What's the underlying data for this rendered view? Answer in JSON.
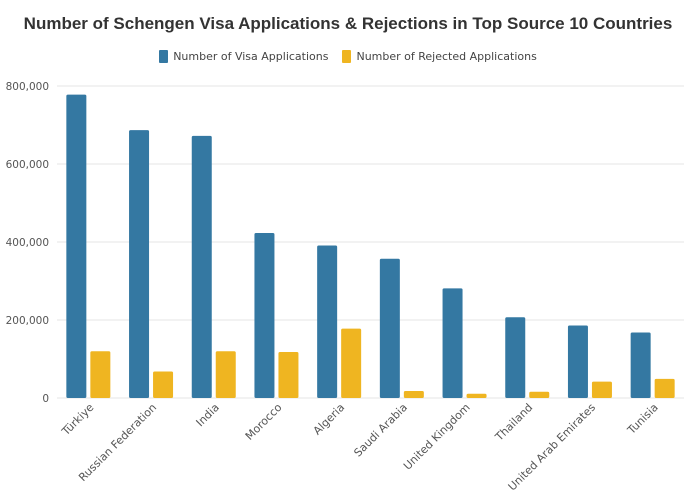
{
  "chart_data": {
    "type": "bar",
    "title": "Number of Schengen Visa Applications & Rejections in Top Source 10 Countries",
    "xlabel": "",
    "ylabel": "",
    "ylim": [
      0,
      800000
    ],
    "yticks": [
      0,
      200000,
      400000,
      600000,
      800000
    ],
    "ytick_labels": [
      "0",
      "200,000",
      "400,000",
      "600,000",
      "800,000"
    ],
    "legend_position": "top-center",
    "grid": true,
    "categories": [
      "Türkiye",
      "Russian Federation",
      "India",
      "Morocco",
      "Algeria",
      "Saudi Arabia",
      "United Kingdom",
      "Thailand",
      "United Arab Emirates",
      "Tunisia"
    ],
    "series": [
      {
        "name": "Number of Visa Applications",
        "color": "#3478a2",
        "values": [
          778000,
          687000,
          672000,
          423000,
          391000,
          357000,
          281000,
          207000,
          186000,
          168000
        ]
      },
      {
        "name": "Number of Rejected Applications",
        "color": "#efb521",
        "values": [
          120000,
          68000,
          120000,
          118000,
          178000,
          18000,
          11000,
          16000,
          42000,
          49000
        ]
      }
    ]
  }
}
